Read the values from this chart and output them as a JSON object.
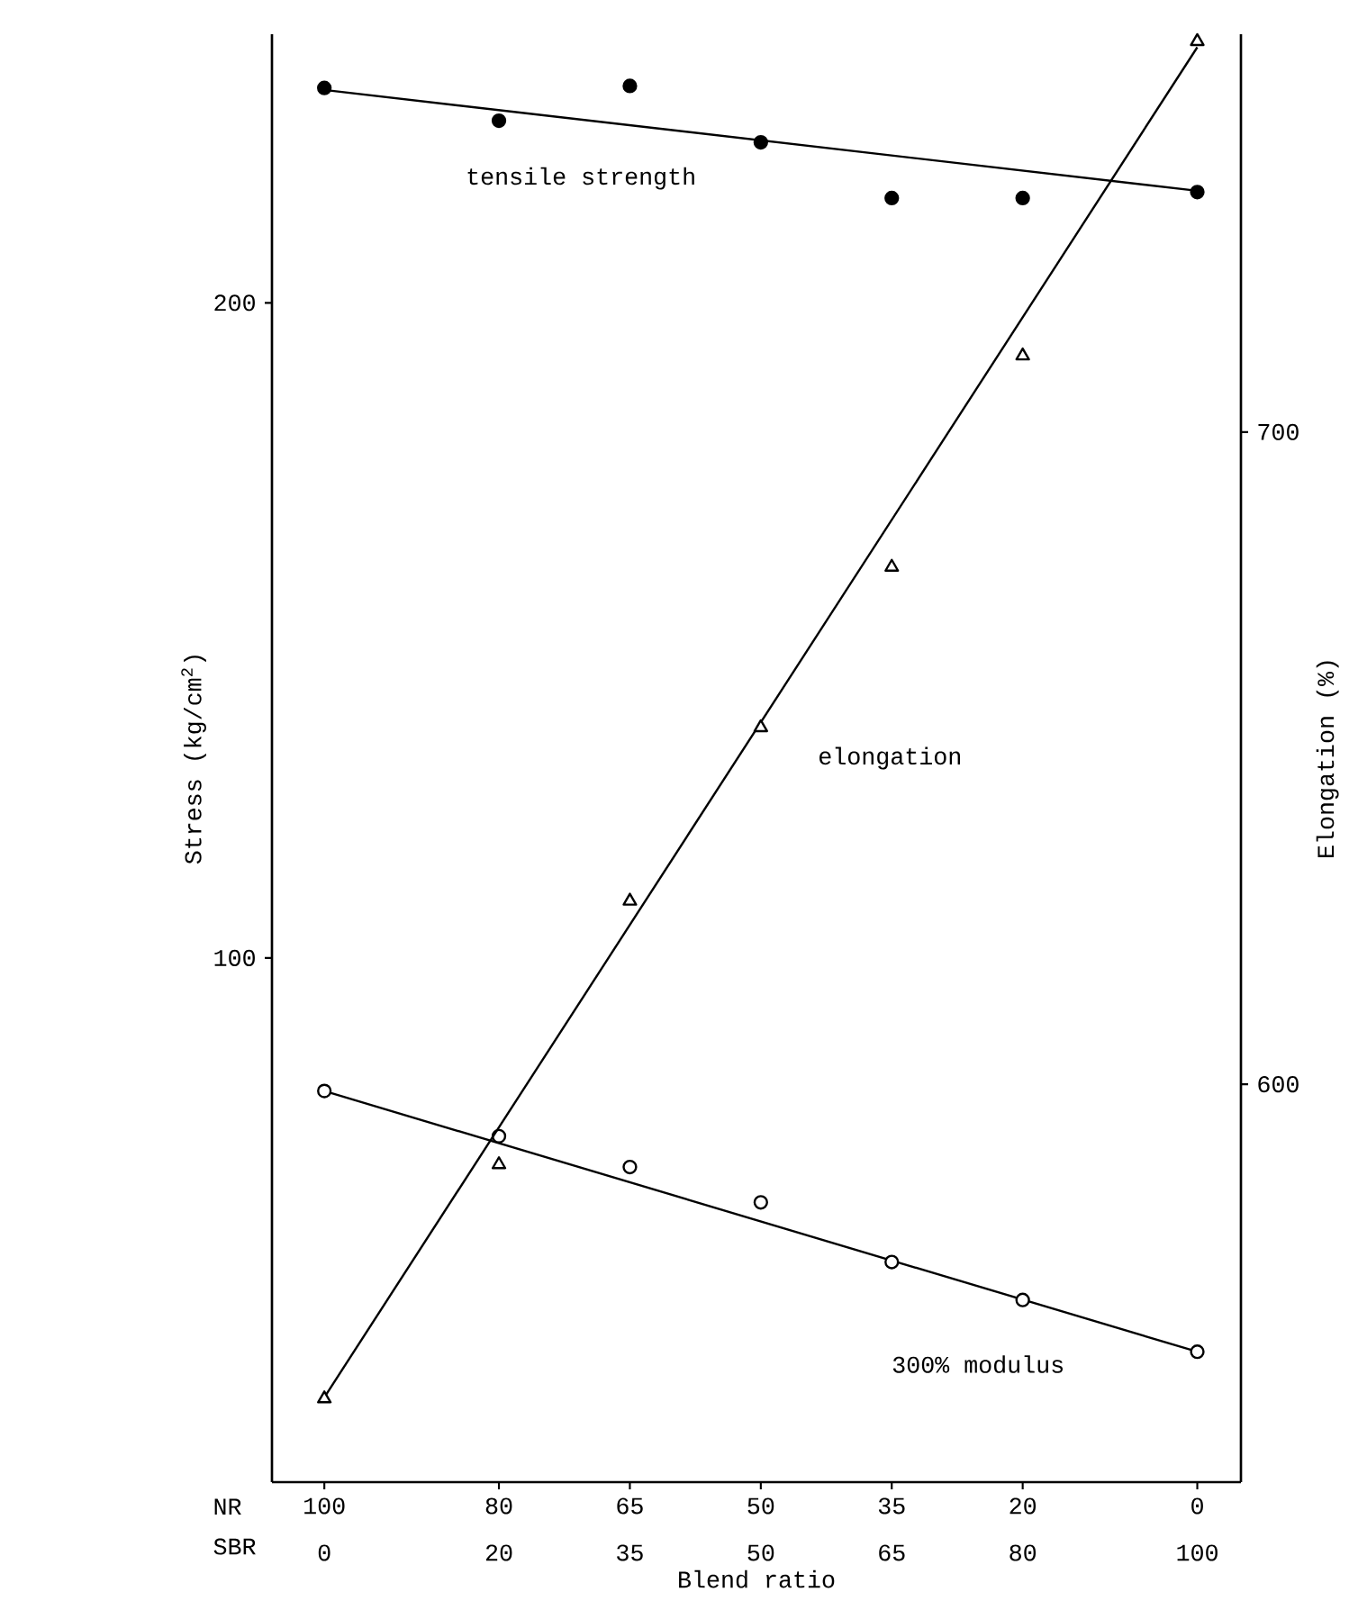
{
  "chart_data": {
    "type": "scatter",
    "xlabel": "Blend ratio",
    "ylabel": "Stress (kg/cm$^{2}$)",
    "y2label": "Elongation (%)",
    "xlim": [
      106,
      -5
    ],
    "xticks": [
      100,
      80,
      65,
      50,
      35,
      20,
      0
    ],
    "x2lim": [
      -6,
      105
    ],
    "x2ticks": [
      0,
      20,
      35,
      50,
      65,
      80,
      100
    ],
    "ylim": [
      20,
      241
    ],
    "yticks": [
      100,
      200
    ],
    "y2lim": [
      539,
      761
    ],
    "y2ticks": [
      600,
      700
    ],
    "annotations": [
      "NR",
      "SBR"
    ],
    "series": [
      {
        "name": "tensile strength",
        "marker": "circle",
        "color": "#000000",
        "x": [
          100,
          80,
          65,
          50,
          35,
          20,
          0
        ],
        "values": [
          232.8,
          227.8,
          233.1,
          224.5,
          216,
          216,
          216.9
        ]
      },
      {
        "type": "line",
        "marker": "none",
        "color": "#000000",
        "x": [
          100,
          0
        ],
        "values": [
          232.5,
          217.1
        ]
      },
      {
        "name": "elongation",
        "marker": "triangle",
        "axis": "y2",
        "color": "#000000",
        "x": [
          100,
          80,
          65,
          50,
          35,
          20,
          0
        ],
        "values": [
          551.8,
          587.7,
          628.1,
          654.7,
          679.3,
          711.7,
          759.9
        ]
      },
      {
        "type": "line",
        "marker": "none",
        "axis": "y2",
        "color": "#000000",
        "x": [
          100,
          0
        ],
        "values": [
          552,
          759
        ]
      },
      {
        "name": "300% modulus",
        "marker": "circle",
        "color": "#000000",
        "x": [
          100,
          80,
          65,
          50,
          35,
          20,
          0
        ],
        "values": [
          79.7,
          72.8,
          68.1,
          62.7,
          53.6,
          47.8,
          39.9
        ]
      },
      {
        "type": "line",
        "marker": "none",
        "color": "#000000",
        "x": [
          100,
          0
        ],
        "values": [
          79.7,
          39.9
        ]
      }
    ]
  }
}
